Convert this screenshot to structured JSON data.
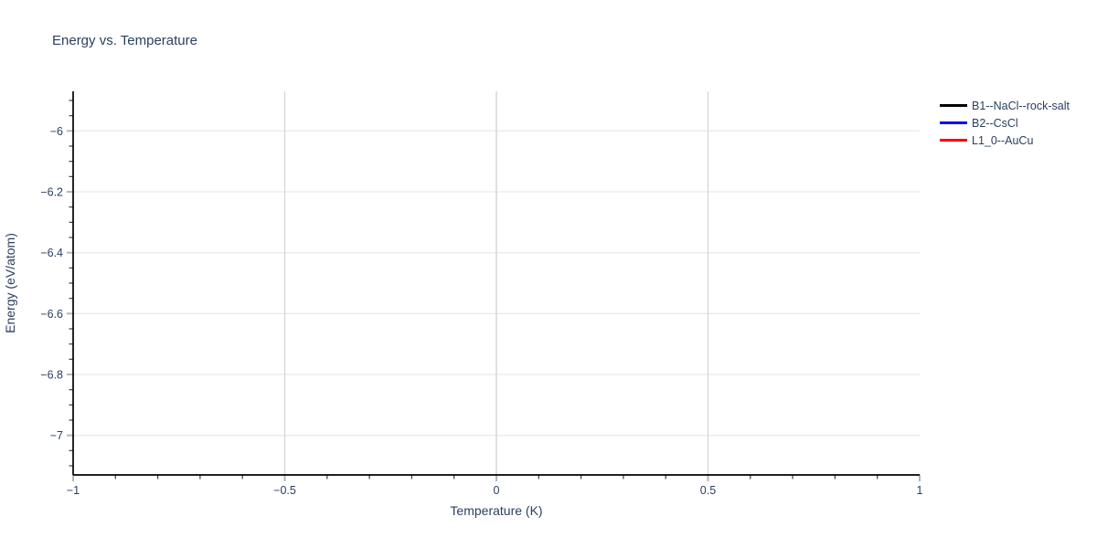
{
  "chart_data": {
    "type": "line",
    "title": "Energy vs. Temperature",
    "xlabel": "Temperature (K)",
    "ylabel": "Energy (eV/atom)",
    "xlim": [
      -1,
      1
    ],
    "ylim": [
      -7.13,
      -5.87
    ],
    "grid": true,
    "legend_position": "top-right-outside",
    "x_ticks": {
      "values": [
        -1,
        -0.5,
        0,
        0.5,
        1
      ],
      "labels": [
        "−1",
        "−0.5",
        "0",
        "0.5",
        "1"
      ],
      "minor_step": 0.1
    },
    "y_ticks": {
      "values": [
        -6,
        -6.2,
        -6.4,
        -6.6,
        -6.8,
        -7
      ],
      "labels": [
        "−6",
        "−6.2",
        "−6.4",
        "−6.6",
        "−6.8",
        "−7"
      ],
      "minor_step": 0.05
    },
    "series": [
      {
        "name": "B1--NaCl--rock-salt",
        "color": "#000000",
        "x": [],
        "y": []
      },
      {
        "name": "B2--CsCl",
        "color": "#0000ff",
        "x": [],
        "y": []
      },
      {
        "name": "L1_0--AuCu",
        "color": "#ff0000",
        "x": [],
        "y": []
      }
    ]
  },
  "style_colors": {
    "text": "#2a3f5f",
    "axis_line": "#000000",
    "grid_horizontal": "#eaeaea",
    "grid_vertical": "#d7d7d7",
    "zeroline": "#d0d0d0",
    "major_tick": "#b0b6bd",
    "minor_tick": "#3c3c3c"
  }
}
